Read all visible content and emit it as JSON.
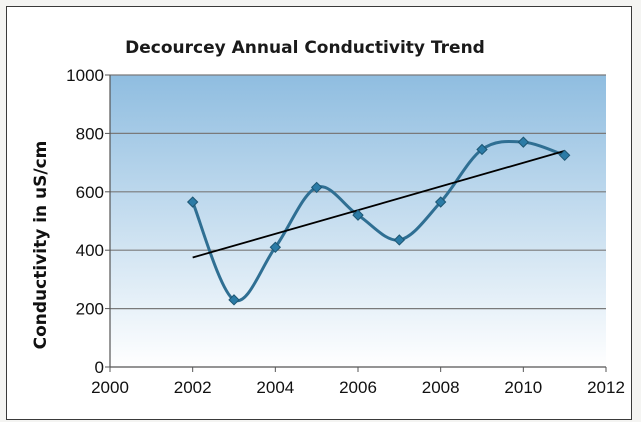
{
  "chart_data": {
    "type": "line",
    "title": "Decourcey Annual Conductivity Trend",
    "xlabel": "",
    "ylabel": "Conductivity in uS/cm",
    "xlim": [
      2000,
      2012
    ],
    "ylim": [
      0,
      1000
    ],
    "x_ticks": [
      "2000",
      "2002",
      "2004",
      "2006",
      "2008",
      "2010",
      "2012"
    ],
    "y_ticks": [
      "0",
      "200",
      "400",
      "600",
      "800",
      "1000"
    ],
    "grid": true,
    "legend": "none",
    "series": [
      {
        "x": [
          2002,
          2003,
          2004,
          2005,
          2006,
          2007,
          2008,
          2009,
          2010,
          2011
        ],
        "y": [
          565,
          230,
          410,
          615,
          520,
          435,
          565,
          745,
          770,
          725
        ],
        "color": "#2f6f93",
        "marker": "diamond",
        "smooth": true
      }
    ],
    "trendline": {
      "x": [
        2002,
        2011
      ],
      "y": [
        375,
        740
      ],
      "color": "#000000"
    },
    "plot_background": {
      "top": "#8fbde0",
      "bottom": "#ffffff"
    }
  }
}
